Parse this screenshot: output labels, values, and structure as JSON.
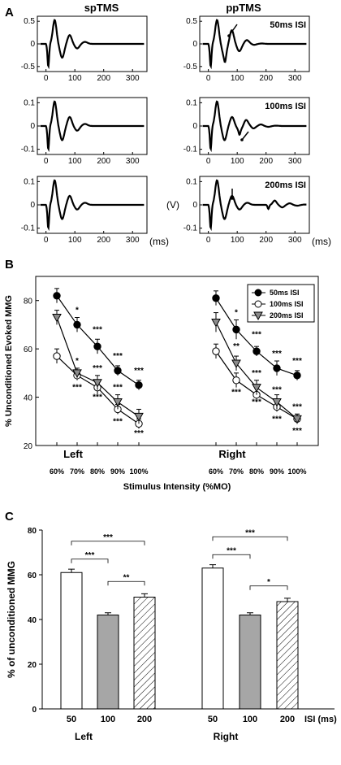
{
  "panels": {
    "A": "A",
    "B": "B",
    "C": "C"
  },
  "panel_a": {
    "column_titles": [
      "spTMS",
      "ppTMS"
    ],
    "isi_labels": [
      "50ms ISI",
      "100ms ISI",
      "200ms ISI"
    ],
    "x_ticks": [
      "0",
      "100",
      "200",
      "300"
    ],
    "x_unit": "(ms)",
    "y_unit": "(V)",
    "y_ticks_row1": [
      "0.5",
      "0",
      "-0.5"
    ],
    "y_ticks_row23": [
      "0.1",
      "0",
      "-0.1"
    ]
  },
  "chart_data": [
    {
      "type": "line",
      "panel": "B",
      "ylabel": "% Unconditioned Evoked MMG",
      "xlabel": "Stimulus Intensity (%MO)",
      "categories": [
        "60%",
        "70%",
        "80%",
        "90%",
        "100%"
      ],
      "ylim": [
        20,
        90
      ],
      "y_ticks": [
        "20",
        "40",
        "60",
        "80"
      ],
      "group_labels": [
        "Left",
        "Right"
      ],
      "legend": [
        "50ms ISI",
        "100ms ISI",
        "200ms ISI"
      ],
      "legend_position": "top-right",
      "colors": {
        "50ms": "#000000",
        "100ms": "#ffffff",
        "200ms": "#8c8c8c"
      },
      "groups": [
        {
          "name": "Left",
          "series": [
            {
              "name": "50ms ISI",
              "values": [
                82,
                70,
                61,
                51,
                45
              ],
              "errors": [
                3,
                3,
                3,
                2,
                2
              ]
            },
            {
              "name": "100ms ISI",
              "values": [
                57,
                49,
                44,
                35,
                29
              ],
              "errors": [
                3,
                2,
                3,
                2,
                2
              ]
            },
            {
              "name": "200ms ISI",
              "values": [
                73,
                50,
                46,
                38,
                32
              ],
              "errors": [
                3,
                2,
                3,
                3,
                3
              ]
            }
          ],
          "significance": [
            {
              "x": 1,
              "y": 75,
              "text": "*"
            },
            {
              "x": 2,
              "y": 67,
              "text": "***"
            },
            {
              "x": 3,
              "y": 56,
              "text": "***"
            },
            {
              "x": 4,
              "y": 50,
              "text": "***"
            },
            {
              "x": 1,
              "y": 54,
              "text": "*"
            },
            {
              "x": 2,
              "y": 51,
              "text": "***"
            },
            {
              "x": 3,
              "y": 43,
              "text": "***"
            },
            {
              "x": 1,
              "y": 43,
              "text": "***"
            },
            {
              "x": 2,
              "y": 39,
              "text": "***"
            },
            {
              "x": 3,
              "y": 29,
              "text": "***"
            },
            {
              "x": 4,
              "y": 24,
              "text": "***"
            }
          ]
        },
        {
          "name": "Right",
          "series": [
            {
              "name": "50ms ISI",
              "values": [
                81,
                68,
                59,
                52,
                49
              ],
              "errors": [
                3,
                4,
                2,
                3,
                2
              ]
            },
            {
              "name": "100ms ISI",
              "values": [
                59,
                47,
                41,
                36,
                31
              ],
              "errors": [
                3,
                3,
                3,
                2,
                2
              ]
            },
            {
              "name": "200ms ISI",
              "values": [
                71,
                54,
                44,
                38,
                31
              ],
              "errors": [
                4,
                3,
                3,
                3,
                2
              ]
            }
          ],
          "significance": [
            {
              "x": 1,
              "y": 74,
              "text": "*"
            },
            {
              "x": 2,
              "y": 65,
              "text": "***"
            },
            {
              "x": 3,
              "y": 57,
              "text": "***"
            },
            {
              "x": 4,
              "y": 54,
              "text": "***"
            },
            {
              "x": 1,
              "y": 60,
              "text": "**"
            },
            {
              "x": 2,
              "y": 49,
              "text": "***"
            },
            {
              "x": 3,
              "y": 42,
              "text": "***"
            },
            {
              "x": 1,
              "y": 41,
              "text": "***"
            },
            {
              "x": 2,
              "y": 37,
              "text": "***"
            },
            {
              "x": 3,
              "y": 30,
              "text": "***"
            },
            {
              "x": 4,
              "y": 35,
              "text": "***"
            },
            {
              "x": 4,
              "y": 25,
              "text": "***"
            }
          ]
        }
      ]
    },
    {
      "type": "bar",
      "panel": "C",
      "ylabel": "% of unconditioned MMG",
      "ylim": [
        0,
        80
      ],
      "y_ticks": [
        "0",
        "20",
        "40",
        "60",
        "80"
      ],
      "x_axis_label": "ISI (ms)",
      "categories": [
        "50",
        "100",
        "200"
      ],
      "groups": [
        {
          "name": "Left",
          "values": [
            61,
            42,
            50
          ],
          "errors": [
            1.5,
            1,
            1.5
          ]
        },
        {
          "name": "Right",
          "values": [
            63,
            42,
            48
          ],
          "errors": [
            1.5,
            1,
            1.5
          ]
        }
      ],
      "bar_styles": [
        "white",
        "gray",
        "hatched"
      ],
      "significance": [
        {
          "group": "Left",
          "from": "50",
          "to": "100",
          "text": "***"
        },
        {
          "group": "Left",
          "from": "50",
          "to": "200",
          "text": "***"
        },
        {
          "group": "Left",
          "from": "100",
          "to": "200",
          "text": "**"
        },
        {
          "group": "Right",
          "from": "50",
          "to": "100",
          "text": "***"
        },
        {
          "group": "Right",
          "from": "50",
          "to": "200",
          "text": "***"
        },
        {
          "group": "Right",
          "from": "100",
          "to": "200",
          "text": "*"
        }
      ]
    }
  ]
}
